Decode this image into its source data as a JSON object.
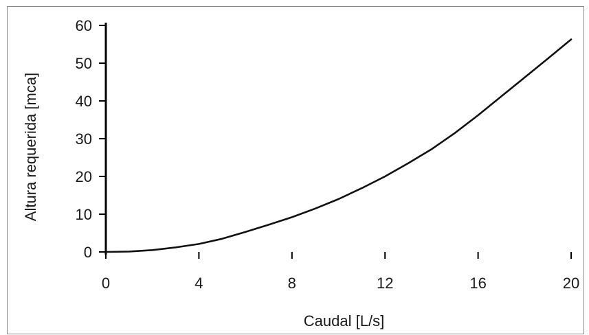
{
  "chart_data": {
    "type": "line",
    "title": "",
    "xlabel": "Caudal [L/s]",
    "ylabel": "Altura requerida [mca]",
    "xlim": [
      0,
      20
    ],
    "ylim": [
      0,
      60
    ],
    "x_ticks": [
      "0",
      "4",
      "8",
      "12",
      "16",
      "20"
    ],
    "y_ticks": [
      "0",
      "10",
      "20",
      "30",
      "40",
      "50",
      "60"
    ],
    "grid": false,
    "line_color": "#111111",
    "series": [
      {
        "x": [
          0,
          1,
          2,
          3,
          4,
          5,
          6,
          7,
          8,
          9,
          10,
          11,
          12,
          13,
          14,
          15,
          16,
          17,
          18,
          19,
          20
        ],
        "y": [
          0,
          0.1,
          0.5,
          1.2,
          2.1,
          3.5,
          5.3,
          7.2,
          9.2,
          11.5,
          14.0,
          16.9,
          20.0,
          23.5,
          27.2,
          31.5,
          36.2,
          41.2,
          46.2,
          51.2,
          56.3
        ]
      }
    ]
  }
}
